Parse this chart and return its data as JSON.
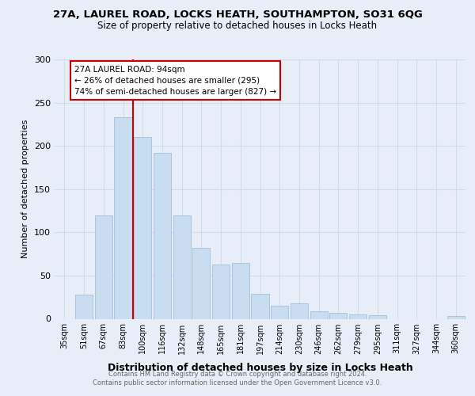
{
  "title_line1": "27A, LAUREL ROAD, LOCKS HEATH, SOUTHAMPTON, SO31 6QG",
  "title_line2": "Size of property relative to detached houses in Locks Heath",
  "xlabel": "Distribution of detached houses by size in Locks Heath",
  "ylabel": "Number of detached properties",
  "categories": [
    "35sqm",
    "51sqm",
    "67sqm",
    "83sqm",
    "100sqm",
    "116sqm",
    "132sqm",
    "148sqm",
    "165sqm",
    "181sqm",
    "197sqm",
    "214sqm",
    "230sqm",
    "246sqm",
    "262sqm",
    "279sqm",
    "295sqm",
    "311sqm",
    "327sqm",
    "344sqm",
    "360sqm"
  ],
  "values": [
    0,
    28,
    120,
    233,
    210,
    192,
    120,
    82,
    63,
    65,
    29,
    15,
    18,
    9,
    7,
    5,
    4,
    0,
    0,
    0,
    3
  ],
  "bar_color": "#c9ddf0",
  "bar_edge_color": "#a8c4e0",
  "grid_color": "#d0dcea",
  "background_color": "#e8eef8",
  "vline_color": "#cc0000",
  "annotation_text": "27A LAUREL ROAD: 94sqm\n← 26% of detached houses are smaller (295)\n74% of semi-detached houses are larger (827) →",
  "annotation_box_color": "#ffffff",
  "annotation_box_edge_color": "#cc0000",
  "footer_text": "Contains HM Land Registry data © Crown copyright and database right 2024.\nContains public sector information licensed under the Open Government Licence v3.0.",
  "ylim": [
    0,
    300
  ],
  "yticks": [
    0,
    50,
    100,
    150,
    200,
    250,
    300
  ]
}
